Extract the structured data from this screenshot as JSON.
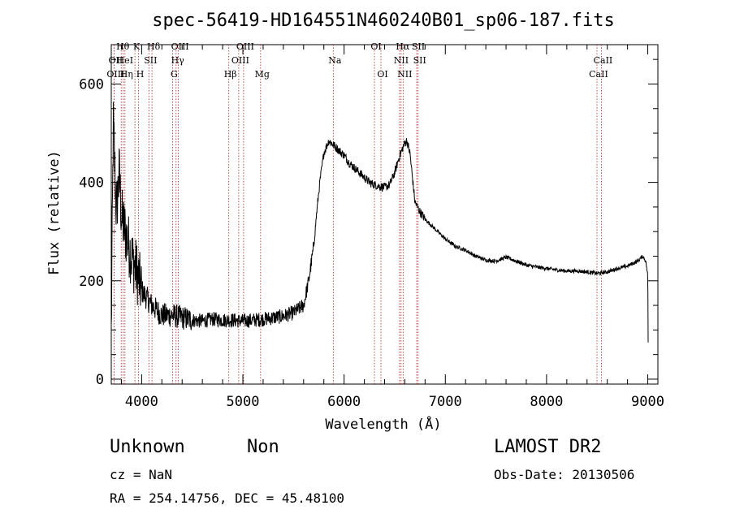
{
  "chart_data": {
    "type": "line",
    "title": "spec-56419-HD164551N460240B01_sp06-187.fits",
    "xlabel": "Wavelength (Å)",
    "ylabel": "Flux (relative)",
    "xlim": [
      3700,
      9100
    ],
    "ylim": [
      -10,
      680
    ],
    "xticks": [
      4000,
      5000,
      6000,
      7000,
      8000,
      9000
    ],
    "yticks": [
      0,
      200,
      400,
      600
    ],
    "line_color": "#000000",
    "marker_color": "#b22222",
    "spectrum_keypoints": [
      [
        3700,
        90
      ],
      [
        3720,
        520
      ],
      [
        3750,
        340
      ],
      [
        3780,
        420
      ],
      [
        3800,
        330
      ],
      [
        3850,
        290
      ],
      [
        3900,
        250
      ],
      [
        3950,
        220
      ],
      [
        4000,
        180
      ],
      [
        4100,
        150
      ],
      [
        4200,
        130
      ],
      [
        4300,
        130
      ],
      [
        4400,
        125
      ],
      [
        4500,
        120
      ],
      [
        4600,
        118
      ],
      [
        4700,
        122
      ],
      [
        4800,
        120
      ],
      [
        4900,
        120
      ],
      [
        5000,
        118
      ],
      [
        5100,
        120
      ],
      [
        5200,
        122
      ],
      [
        5300,
        125
      ],
      [
        5400,
        128
      ],
      [
        5500,
        135
      ],
      [
        5600,
        150
      ],
      [
        5650,
        200
      ],
      [
        5700,
        270
      ],
      [
        5730,
        340
      ],
      [
        5760,
        400
      ],
      [
        5800,
        460
      ],
      [
        5850,
        485
      ],
      [
        5900,
        475
      ],
      [
        5950,
        465
      ],
      [
        6000,
        455
      ],
      [
        6050,
        440
      ],
      [
        6100,
        430
      ],
      [
        6150,
        420
      ],
      [
        6200,
        410
      ],
      [
        6250,
        400
      ],
      [
        6300,
        395
      ],
      [
        6350,
        392
      ],
      [
        6400,
        390
      ],
      [
        6450,
        395
      ],
      [
        6500,
        420
      ],
      [
        6550,
        455
      ],
      [
        6600,
        480
      ],
      [
        6620,
        485
      ],
      [
        6650,
        460
      ],
      [
        6680,
        400
      ],
      [
        6700,
        360
      ],
      [
        6750,
        340
      ],
      [
        6800,
        325
      ],
      [
        6900,
        305
      ],
      [
        7000,
        285
      ],
      [
        7100,
        270
      ],
      [
        7200,
        262
      ],
      [
        7300,
        250
      ],
      [
        7400,
        242
      ],
      [
        7500,
        240
      ],
      [
        7600,
        248
      ],
      [
        7700,
        240
      ],
      [
        7800,
        232
      ],
      [
        7900,
        228
      ],
      [
        8000,
        225
      ],
      [
        8100,
        222
      ],
      [
        8200,
        220
      ],
      [
        8300,
        220
      ],
      [
        8400,
        218
      ],
      [
        8500,
        215
      ],
      [
        8600,
        218
      ],
      [
        8700,
        225
      ],
      [
        8800,
        230
      ],
      [
        8900,
        240
      ],
      [
        8950,
        250
      ],
      [
        8980,
        240
      ],
      [
        9000,
        210
      ],
      [
        9005,
        40
      ]
    ],
    "lines": [
      {
        "label": "OII",
        "wavelength": 3727,
        "row": 1
      },
      {
        "label": "OIII",
        "wavelength": 3727,
        "row": 2
      },
      {
        "label": "Hθ",
        "wavelength": 3798,
        "row": 0
      },
      {
        "label": "HeI",
        "wavelength": 3819,
        "row": 1
      },
      {
        "label": "Hη",
        "wavelength": 3835,
        "row": 2
      },
      {
        "label": "K",
        "wavelength": 3934,
        "row": 0
      },
      {
        "label": "SII",
        "wavelength": 4072,
        "row": 1
      },
      {
        "label": "H",
        "wavelength": 3969,
        "row": 2
      },
      {
        "label": "Hδ",
        "wavelength": 4102,
        "row": 0
      },
      {
        "label": "OIII",
        "wavelength": 4363,
        "row": 0
      },
      {
        "label": "Hγ",
        "wavelength": 4340,
        "row": 1
      },
      {
        "label": "G",
        "wavelength": 4305,
        "row": 2
      },
      {
        "label": "Hβ",
        "wavelength": 4861,
        "row": 2
      },
      {
        "label": "OIII",
        "wavelength": 4959,
        "row": 1
      },
      {
        "label": "OIII",
        "wavelength": 5007,
        "row": 0
      },
      {
        "label": "Mg",
        "wavelength": 5175,
        "row": 2
      },
      {
        "label": "Na",
        "wavelength": 5893,
        "row": 1
      },
      {
        "label": "OI",
        "wavelength": 6300,
        "row": 0
      },
      {
        "label": "OI",
        "wavelength": 6364,
        "row": 2
      },
      {
        "label": "NII",
        "wavelength": 6548,
        "row": 1
      },
      {
        "label": "Hα",
        "wavelength": 6563,
        "row": 0
      },
      {
        "label": "NII",
        "wavelength": 6583,
        "row": 2
      },
      {
        "label": "SII",
        "wavelength": 6717,
        "row": 0
      },
      {
        "label": "SII",
        "wavelength": 6731,
        "row": 1
      },
      {
        "label": "CaII",
        "wavelength": 8498,
        "row": 2
      },
      {
        "label": "CaII",
        "wavelength": 8542,
        "row": 1
      }
    ]
  },
  "info": {
    "class": "Unknown",
    "subclass": "Non",
    "survey": "LAMOST DR2",
    "redshift": "cz = NaN",
    "obs_date": "Obs-Date: 20130506",
    "coords": "RA = 254.14756, DEC =  45.48100"
  }
}
